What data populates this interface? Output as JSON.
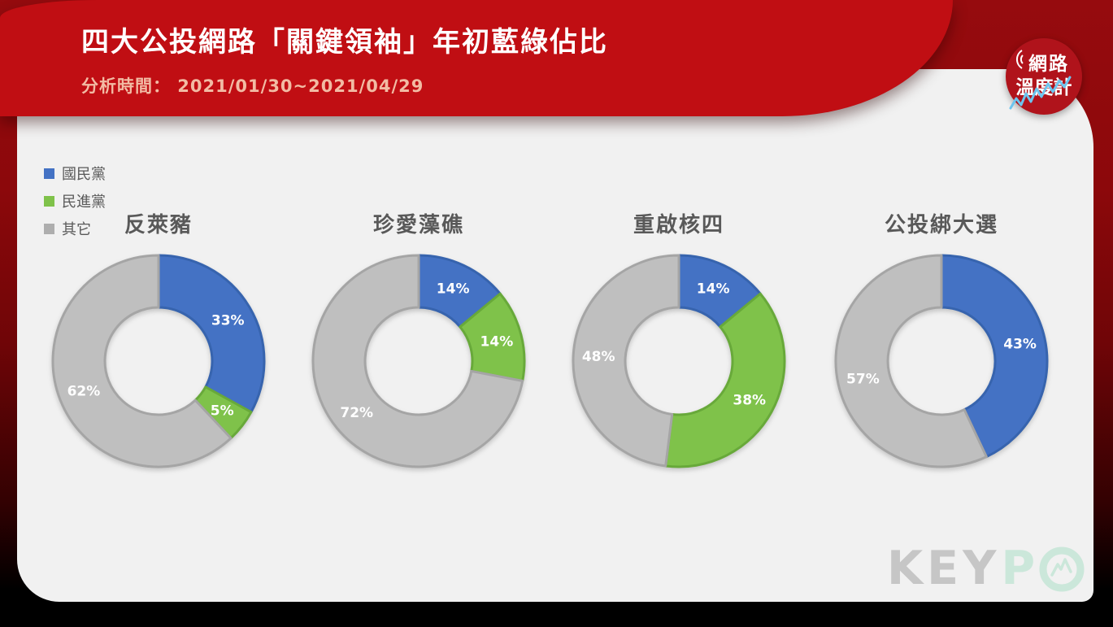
{
  "page": {
    "title": "四大公投網路「關鍵領袖」年初藍綠佔比",
    "analysis_period": "分析時間： 2021/01/30~2021/04/29"
  },
  "brand_badge": {
    "line1": "網路",
    "line2": "溫度計",
    "bg_color": "#b0131b",
    "trend_line_color": "#6cc4ee"
  },
  "watermark": {
    "gray_text": "KEY",
    "green_text": "P",
    "gray_color": "#c6c6c6",
    "green_color": "#cbe7da"
  },
  "legend": {
    "items": [
      {
        "label": "國民黨",
        "color": "#4472c4"
      },
      {
        "label": "民進黨",
        "color": "#7fc24a"
      },
      {
        "label": "其它",
        "color": "#aeaeae"
      }
    ]
  },
  "chart_data": {
    "type": "pie",
    "subtype": "donut",
    "value_format": "percent",
    "start_angle": "12-oclock",
    "direction": "clockwise",
    "legend_position": "top-left",
    "series_names": [
      "國民黨",
      "民進黨",
      "其它"
    ],
    "series_colors": [
      "#4472c4",
      "#7fc24a",
      "#bfbfbf"
    ],
    "series_border_colors": [
      "#3764ae",
      "#68a93a",
      "#a5a5a5"
    ],
    "charts": [
      {
        "title": "反萊豬",
        "values": [
          33,
          5,
          62
        ]
      },
      {
        "title": "珍愛藻礁",
        "values": [
          14,
          14,
          72
        ]
      },
      {
        "title": "重啟核四",
        "values": [
          14,
          38,
          48
        ]
      },
      {
        "title": "公投綁大選",
        "values": [
          43,
          0,
          57
        ]
      }
    ]
  },
  "colors": {
    "header_red": "#c00e13",
    "subtitle_text": "#f2bba4",
    "card_bg": "#f1f1f1",
    "chart_title_text": "#595959",
    "label_text": "#ffffff"
  }
}
